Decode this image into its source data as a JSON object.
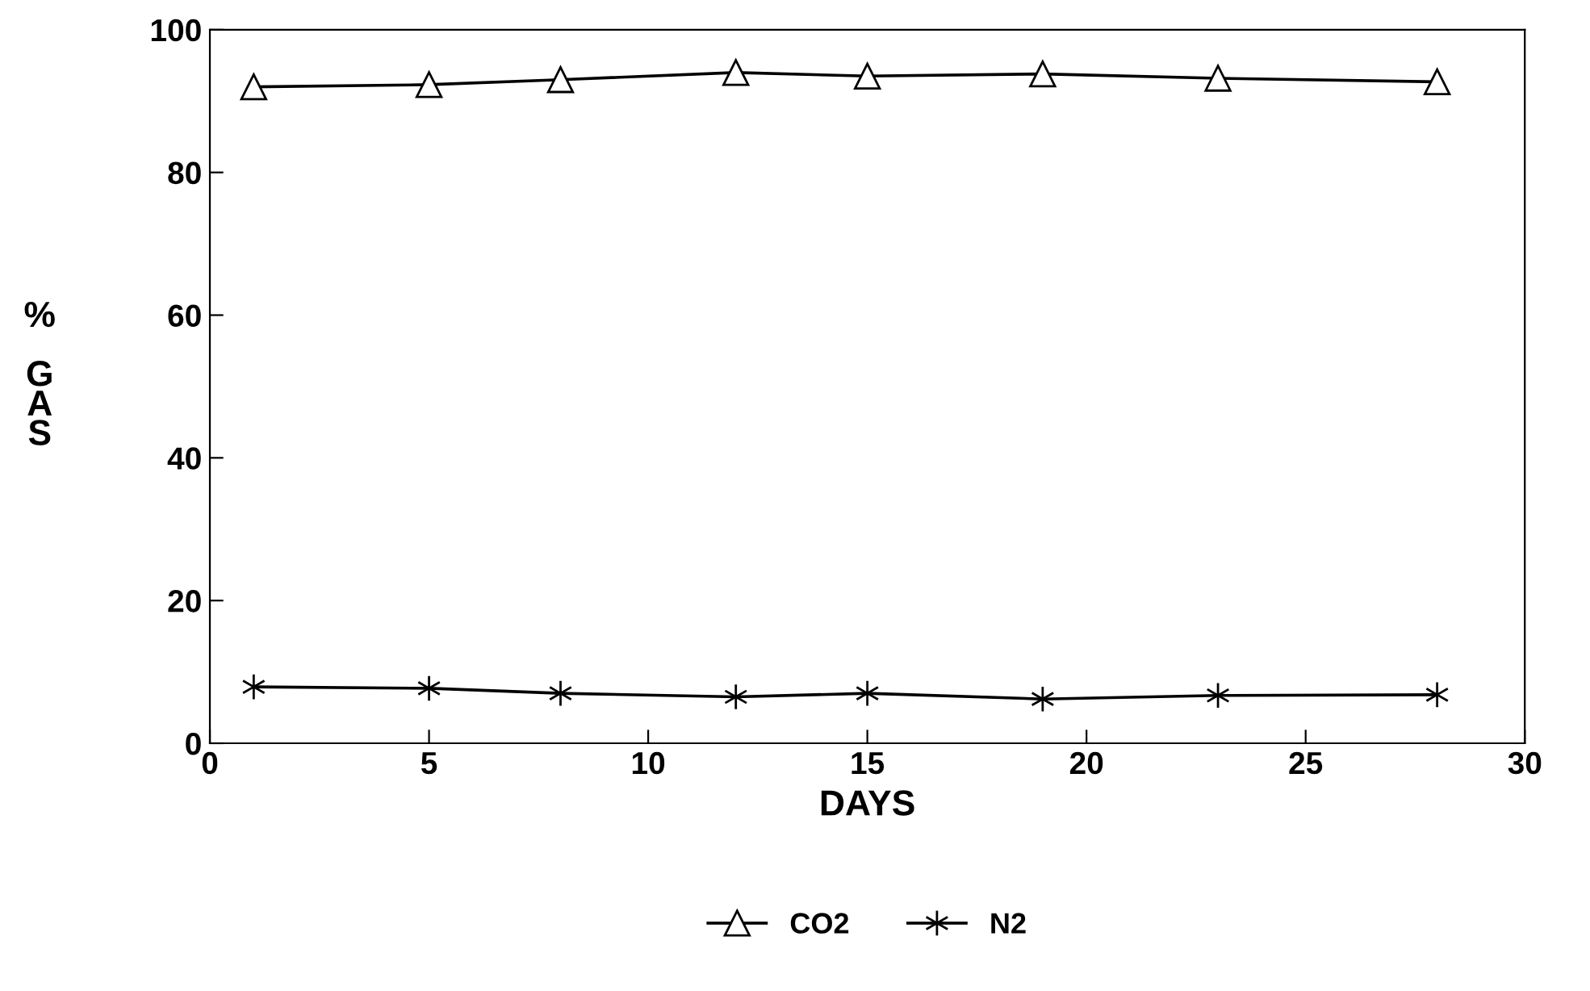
{
  "chart_data": {
    "type": "line",
    "xlabel": "DAYS",
    "ylabel": "% GAS",
    "x": [
      1,
      5,
      8,
      12,
      15,
      19,
      23,
      28
    ],
    "series": [
      {
        "name": "CO2",
        "color": "#000000",
        "marker": "triangle",
        "values": [
          92,
          92.3,
          93,
          94,
          93.5,
          93.8,
          93.2,
          92.7
        ]
      },
      {
        "name": "N2",
        "color": "#000000",
        "marker": "cross",
        "values": [
          7.9,
          7.7,
          7,
          6.5,
          7,
          6.2,
          6.7,
          6.8
        ]
      }
    ],
    "xlim": [
      0,
      30
    ],
    "xticks": [
      0,
      5,
      10,
      15,
      20,
      25,
      30
    ],
    "ylim": [
      0,
      100
    ],
    "yticks": [
      0,
      20,
      40,
      60,
      80,
      100
    ],
    "grid": false,
    "legend": "bottom",
    "line_style": "solid"
  }
}
